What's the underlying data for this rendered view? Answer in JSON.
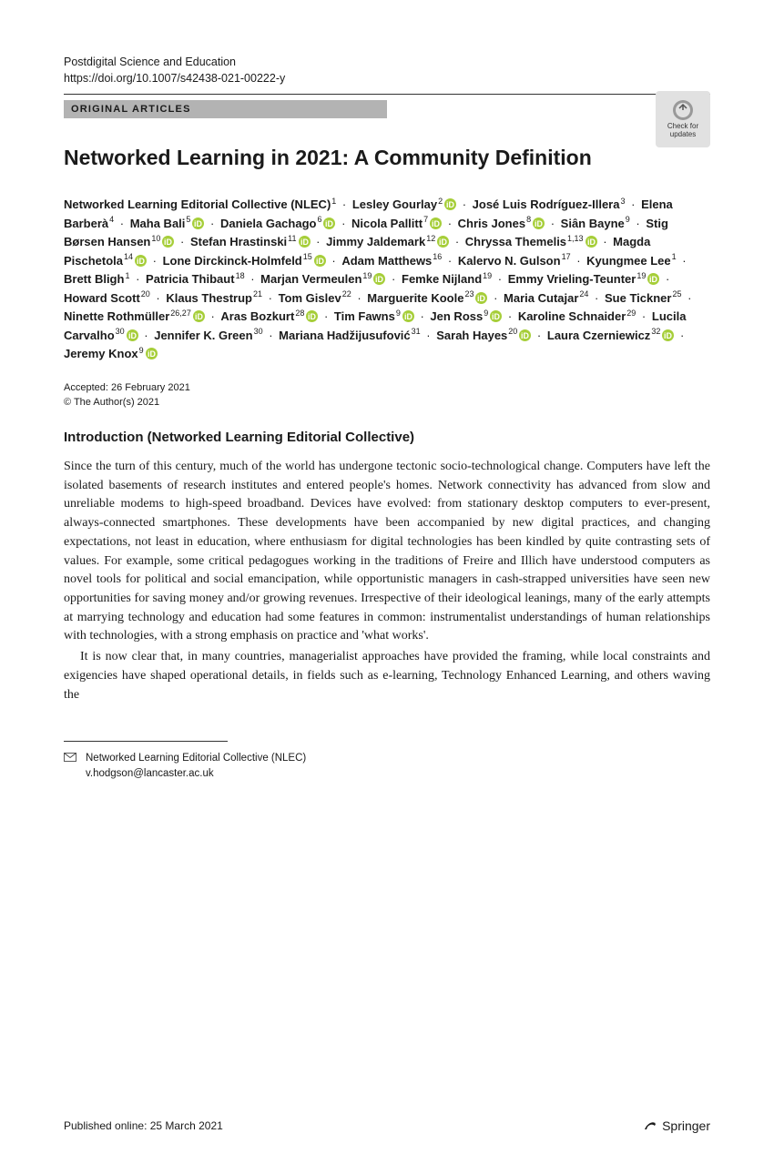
{
  "colors": {
    "text": "#1a1a1a",
    "category_bg": "#b3b3b3",
    "orcid": "#a6ce39",
    "badge_bg": "#e1e1e1"
  },
  "header": {
    "journal": "Postdigital Science and Education",
    "doi": "https://doi.org/10.1007/s42438-021-00222-y",
    "category": "ORIGINAL ARTICLES",
    "check_updates": "Check for updates"
  },
  "title": "Networked Learning in 2021: A Community Definition",
  "authors": [
    {
      "name": "Networked Learning Editorial Collective (NLEC)",
      "aff": "1",
      "orcid": false
    },
    {
      "name": "Lesley Gourlay",
      "aff": "2",
      "orcid": true
    },
    {
      "name": "José Luis Rodríguez-Illera",
      "aff": "3",
      "orcid": false
    },
    {
      "name": "Elena Barberà",
      "aff": "4",
      "orcid": false
    },
    {
      "name": "Maha Bali",
      "aff": "5",
      "orcid": true
    },
    {
      "name": "Daniela Gachago",
      "aff": "6",
      "orcid": true
    },
    {
      "name": "Nicola Pallitt",
      "aff": "7",
      "orcid": true
    },
    {
      "name": "Chris Jones",
      "aff": "8",
      "orcid": true
    },
    {
      "name": "Siân Bayne",
      "aff": "9",
      "orcid": false
    },
    {
      "name": "Stig Børsen Hansen",
      "aff": "10",
      "orcid": true
    },
    {
      "name": "Stefan Hrastinski",
      "aff": "11",
      "orcid": true
    },
    {
      "name": "Jimmy Jaldemark",
      "aff": "12",
      "orcid": true
    },
    {
      "name": "Chryssa Themelis",
      "aff": "1,13",
      "orcid": true
    },
    {
      "name": "Magda Pischetola",
      "aff": "14",
      "orcid": true
    },
    {
      "name": "Lone Dirckinck-Holmfeld",
      "aff": "15",
      "orcid": true
    },
    {
      "name": "Adam Matthews",
      "aff": "16",
      "orcid": false
    },
    {
      "name": "Kalervo N. Gulson",
      "aff": "17",
      "orcid": false
    },
    {
      "name": "Kyungmee Lee",
      "aff": "1",
      "orcid": false
    },
    {
      "name": "Brett Bligh",
      "aff": "1",
      "orcid": false
    },
    {
      "name": "Patricia Thibaut",
      "aff": "18",
      "orcid": false
    },
    {
      "name": "Marjan Vermeulen",
      "aff": "19",
      "orcid": true
    },
    {
      "name": "Femke Nijland",
      "aff": "19",
      "orcid": false
    },
    {
      "name": "Emmy Vrieling-Teunter",
      "aff": "19",
      "orcid": true
    },
    {
      "name": "Howard Scott",
      "aff": "20",
      "orcid": false
    },
    {
      "name": "Klaus Thestrup",
      "aff": "21",
      "orcid": false
    },
    {
      "name": "Tom Gislev",
      "aff": "22",
      "orcid": false
    },
    {
      "name": "Marguerite Koole",
      "aff": "23",
      "orcid": true
    },
    {
      "name": "Maria Cutajar",
      "aff": "24",
      "orcid": false
    },
    {
      "name": "Sue Tickner",
      "aff": "25",
      "orcid": false
    },
    {
      "name": "Ninette Rothmüller",
      "aff": "26,27",
      "orcid": true
    },
    {
      "name": "Aras Bozkurt",
      "aff": "28",
      "orcid": true
    },
    {
      "name": "Tim Fawns",
      "aff": "9",
      "orcid": true
    },
    {
      "name": "Jen Ross",
      "aff": "9",
      "orcid": true
    },
    {
      "name": "Karoline Schnaider",
      "aff": "29",
      "orcid": false
    },
    {
      "name": "Lucila Carvalho",
      "aff": "30",
      "orcid": true
    },
    {
      "name": "Jennifer K. Green",
      "aff": "30",
      "orcid": false
    },
    {
      "name": "Mariana Hadžijusufović",
      "aff": "31",
      "orcid": false
    },
    {
      "name": "Sarah Hayes",
      "aff": "20",
      "orcid": true
    },
    {
      "name": "Laura Czerniewicz",
      "aff": "32",
      "orcid": true
    },
    {
      "name": "Jeremy Knox",
      "aff": "9",
      "orcid": true
    }
  ],
  "accepted": {
    "date": "Accepted: 26 February 2021",
    "copyright": "© The Author(s) 2021"
  },
  "section_heading": "Introduction (Networked Learning Editorial Collective)",
  "body_p1": "Since the turn of this century, much of the world has undergone tectonic socio-technological change. Computers have left the isolated basements of research institutes and entered people's homes. Network connectivity has advanced from slow and unreliable modems to high-speed broadband. Devices have evolved: from stationary desktop computers to ever-present, always-connected smartphones. These developments have been accompanied by new digital practices, and changing expectations, not least in education, where enthusiasm for digital technologies has been kindled by quite contrasting sets of values. For example, some critical pedagogues working in the traditions of Freire and Illich have understood computers as novel tools for political and social emancipation, while opportunistic managers in cash-strapped universities have seen new opportunities for saving money and/or growing revenues. Irrespective of their ideological leanings, many of the early attempts at marrying technology and education had some features in common: instrumentalist understandings of human relationships with technologies, with a strong emphasis on practice and 'what works'.",
  "body_p2": "It is now clear that, in many countries, managerialist approaches have provided the framing, while local constraints and exigencies have shaped operational details, in fields such as e-learning, Technology Enhanced Learning, and others waving the",
  "correspondence": {
    "name": "Networked Learning Editorial Collective (NLEC)",
    "email": "v.hodgson@lancaster.ac.uk"
  },
  "footer": {
    "published": "Published online: 25 March 2021",
    "publisher": "Springer"
  }
}
